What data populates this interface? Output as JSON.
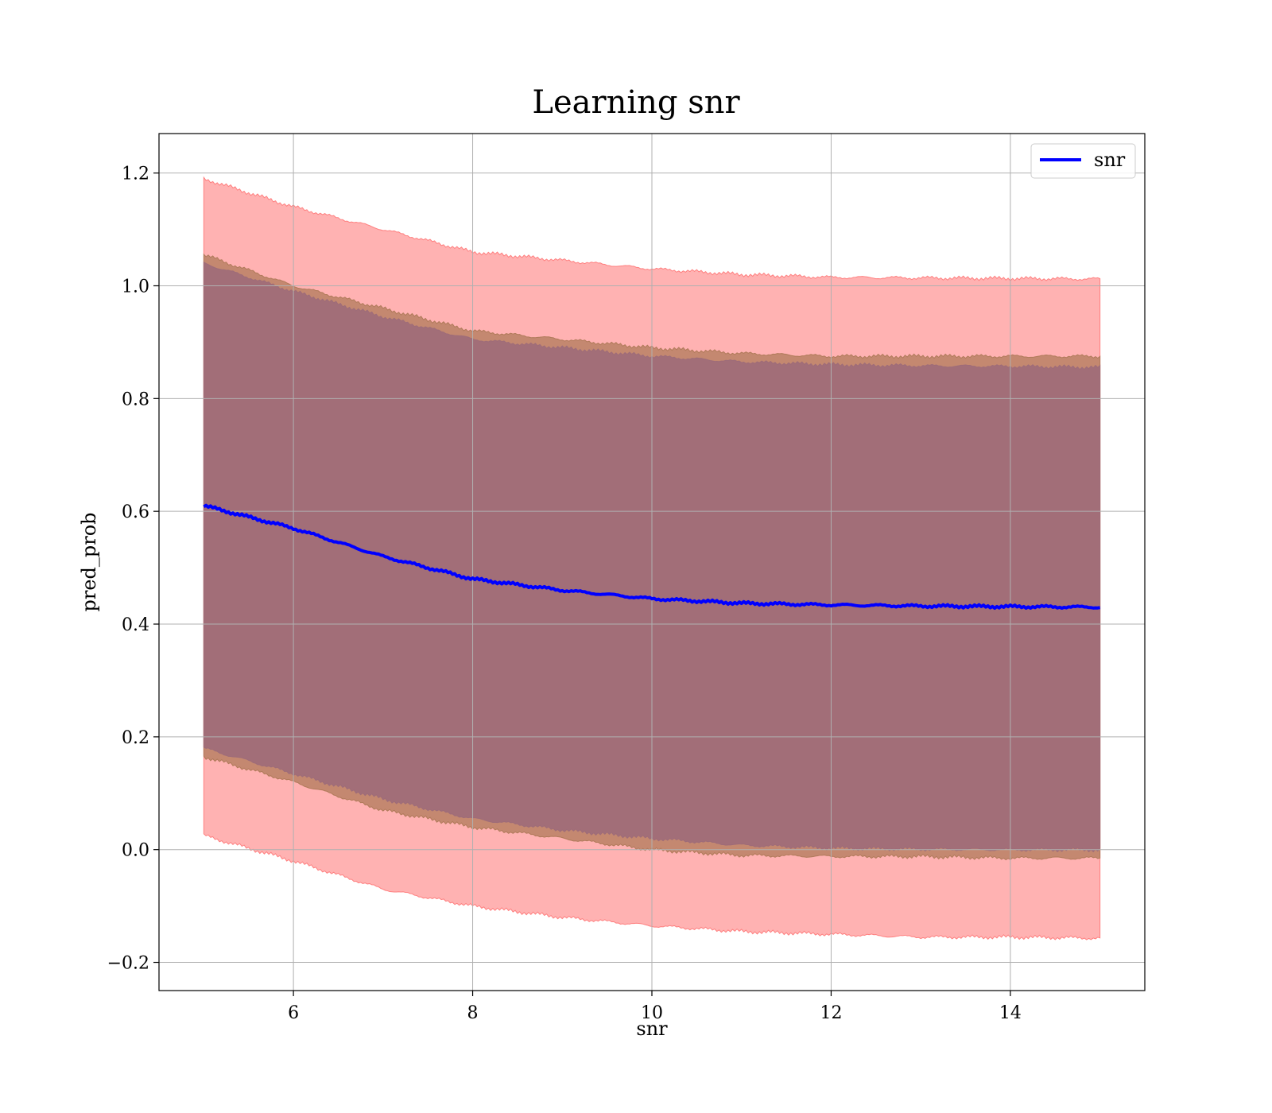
{
  "chart_data": {
    "type": "area",
    "title": "Learning snr",
    "xlabel": "snr",
    "ylabel": "pred_prob",
    "xlim": [
      4.5,
      15.5
    ],
    "ylim": [
      -0.25,
      1.27
    ],
    "xticks": [
      6,
      8,
      10,
      12,
      14
    ],
    "yticks": [
      -0.2,
      0.0,
      0.2,
      0.4,
      0.6,
      0.8,
      1.0,
      1.2
    ],
    "x_anchor": [
      5,
      6,
      7,
      8,
      9,
      10,
      11,
      12,
      13,
      14,
      15
    ],
    "grid": true,
    "legend": {
      "position": "top-right"
    },
    "series": [
      {
        "name": "snr",
        "kind": "line",
        "color": "#0000ff",
        "values": [
          0.61,
          0.57,
          0.52,
          0.48,
          0.46,
          0.445,
          0.437,
          0.434,
          0.432,
          0.431,
          0.43
        ]
      }
    ],
    "bands": [
      {
        "kind": "band",
        "color": "#ff7f7f",
        "upper": [
          1.19,
          1.14,
          1.1,
          1.06,
          1.045,
          1.03,
          1.02,
          1.015,
          1.014,
          1.013,
          1.012
        ],
        "lower": [
          0.025,
          -0.02,
          -0.07,
          -0.1,
          -0.12,
          -0.135,
          -0.145,
          -0.15,
          -0.155,
          -0.155,
          -0.157
        ]
      },
      {
        "kind": "band",
        "color": "#b07a5a",
        "upper": [
          1.055,
          1.0,
          0.96,
          0.92,
          0.905,
          0.89,
          0.88,
          0.875,
          0.875,
          0.875,
          0.875
        ],
        "lower": [
          0.165,
          0.12,
          0.07,
          0.04,
          0.02,
          0.0,
          -0.01,
          -0.012,
          -0.012,
          -0.015,
          -0.015
        ]
      },
      {
        "kind": "band",
        "color": "#9e6c79",
        "upper": [
          1.04,
          0.99,
          0.945,
          0.905,
          0.89,
          0.875,
          0.865,
          0.86,
          0.858,
          0.857,
          0.855
        ],
        "lower": [
          0.18,
          0.135,
          0.09,
          0.055,
          0.035,
          0.02,
          0.008,
          0.003,
          0.001,
          0.0,
          0.0
        ]
      }
    ]
  }
}
